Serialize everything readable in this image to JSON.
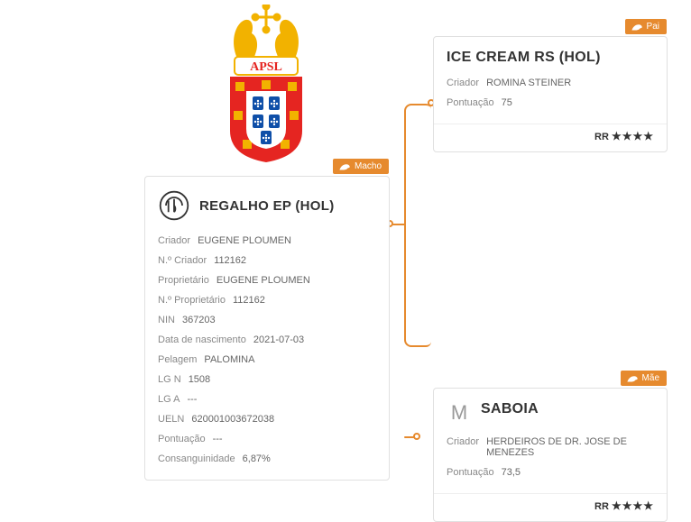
{
  "colors": {
    "accent": "#e68a2e",
    "border": "#e0e0e0",
    "text_primary": "#333333",
    "text_muted": "#888888",
    "text_value": "#666666",
    "logo_red": "#e52521",
    "logo_blue": "#0f4fa8",
    "logo_gold": "#f2b200",
    "logo_white": "#ffffff"
  },
  "logo": {
    "org": "APSL"
  },
  "main": {
    "tag": "Macho",
    "title": "REGALHO EP (HOL)",
    "rows": [
      {
        "k": "Criador",
        "v": "EUGENE PLOUMEN"
      },
      {
        "k": "N.º Criador",
        "v": "112162"
      },
      {
        "k": "Proprietário",
        "v": "EUGENE PLOUMEN"
      },
      {
        "k": "N.º Proprietário",
        "v": "112162"
      },
      {
        "k": "NIN",
        "v": "367203"
      },
      {
        "k": "Data de nascimento",
        "v": "2021-07-03"
      },
      {
        "k": "Pelagem",
        "v": "PALOMINA"
      },
      {
        "k": "LG N",
        "v": "1508"
      },
      {
        "k": "LG A",
        "v": "---"
      },
      {
        "k": "UELN",
        "v": "620001003672038"
      },
      {
        "k": "Pontuação",
        "v": "---"
      },
      {
        "k": "Consanguinidade",
        "v": "6,87%"
      }
    ]
  },
  "sire": {
    "tag": "Pai",
    "title": "ICE CREAM RS (HOL)",
    "rows": [
      {
        "k": "Criador",
        "v": "ROMINA STEINER"
      },
      {
        "k": "Pontuação",
        "v": "75"
      }
    ],
    "rating_prefix": "RR",
    "stars": "★★★★"
  },
  "dam": {
    "tag": "Mãe",
    "title": "SABOIA",
    "rows": [
      {
        "k": "Criador",
        "v": "HERDEIROS DE DR. JOSE DE MENEZES"
      },
      {
        "k": "Pontuação",
        "v": "73,5"
      }
    ],
    "rating_prefix": "RR",
    "stars": "★★★★"
  }
}
